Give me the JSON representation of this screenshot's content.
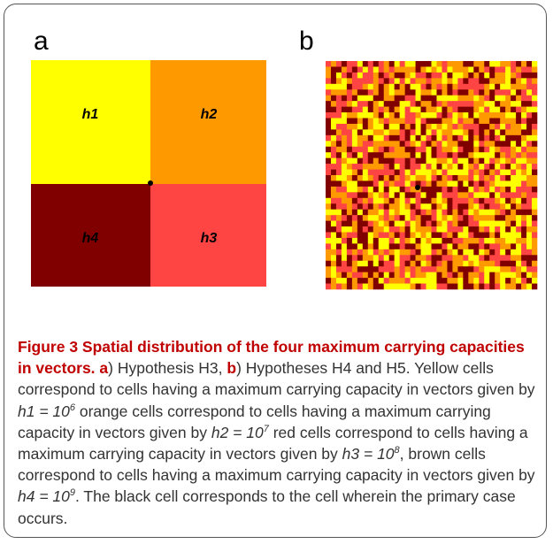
{
  "figure": {
    "panels": [
      {
        "label": "a",
        "regions": [
          "h1",
          "h2",
          "h4",
          "h3"
        ]
      },
      {
        "label": "b"
      }
    ],
    "caption": [
      {
        "text": "Figure 3 Spatial distribution of the four maximum carrying capacities in vectors.",
        "style": "bold"
      },
      {
        "text": " ",
        "style": "normal"
      },
      {
        "text": "a",
        "style": "bold"
      },
      {
        "text": ") Hypothesis H3, ",
        "style": "normal"
      },
      {
        "text": "b",
        "style": "bold"
      },
      {
        "text": ") Hypotheses H4 and H5. Yellow cells correspond to cells having a maximum carrying capacity in vectors given by ",
        "style": "normal"
      },
      {
        "text": "h1 = 10",
        "style": "italic"
      },
      {
        "text": "6",
        "style": "sup"
      },
      {
        "text": " orange cells correspond to cells having a maximum carrying capacity in vectors given by ",
        "style": "normal"
      },
      {
        "text": "h2 = 10",
        "style": "italic"
      },
      {
        "text": "7",
        "style": "sup"
      },
      {
        "text": " red cells correspond to cells having a maximum carrying capacity in vectors given by ",
        "style": "normal"
      },
      {
        "text": "h3 = 10",
        "style": "italic"
      },
      {
        "text": "8",
        "style": "sup"
      },
      {
        "text": ", brown cells correspond to cells having a maximum carrying capacity in vectors given by ",
        "style": "normal"
      },
      {
        "text": "h4 = 10",
        "style": "italic"
      },
      {
        "text": "9",
        "style": "sup"
      },
      {
        "text": ". The black cell corresponds to the cell wherein the primary case occurs.",
        "style": "normal"
      }
    ]
  }
}
